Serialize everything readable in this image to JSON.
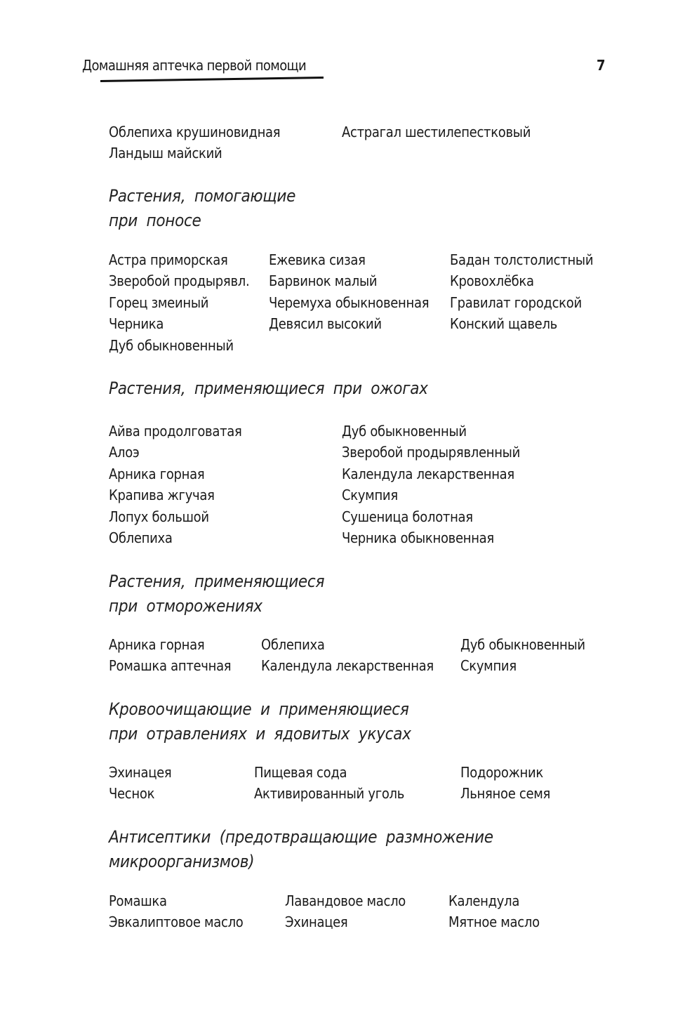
{
  "header": {
    "title": "Домашняя аптечка первой помощи",
    "page_number": "7"
  },
  "sections": [
    {
      "heading": [],
      "rows": [
        [
          "Облепиха крушиновидная",
          "Астрагал шестилепестковый"
        ],
        [
          "Ландыш майский"
        ]
      ]
    },
    {
      "heading": [
        "Растения, помогающие",
        "при поносе"
      ],
      "rows": [
        [
          "Астра приморская",
          "Ежевика сизая",
          "Бадан толстолистный"
        ],
        [
          "Зверобой продырявл.",
          "Барвинок малый",
          "Кровохлёбка"
        ],
        [
          "Горец змеиный",
          "Черемуха обыкновенная",
          "Гравилат городской"
        ],
        [
          "Черника",
          "Девясил высокий",
          "Конский щавель"
        ],
        [
          "Дуб обыкновенный"
        ]
      ]
    },
    {
      "heading": [
        "Растения, применяющиеся при ожогах"
      ],
      "rows": [
        [
          "Айва продолговатая",
          "Дуб обыкновенный"
        ],
        [
          "Алоэ",
          "Зверобой продырявленный"
        ],
        [
          "Арника горная",
          "Календула лекарственная"
        ],
        [
          "Крапива жгучая",
          "Скумпия"
        ],
        [
          "Лопух большой",
          "Сушеница болотная"
        ],
        [
          "Облепиха",
          "Черника обыкновенная"
        ]
      ]
    },
    {
      "heading": [
        "Растения, применяющиеся",
        "при отморожениях"
      ],
      "rows": [
        [
          "Арника горная",
          "Облепиха",
          "Дуб обыкновенный"
        ],
        [
          "Ромашка аптечная",
          "Календула лекарственная",
          "Скумпия"
        ]
      ]
    },
    {
      "heading": [
        "Кровоочищающие и применяющиеся",
        "при отравлениях и ядовитых укусах"
      ],
      "rows": [
        [
          "Эхинацея",
          "Пищевая сода",
          "Подорожник"
        ],
        [
          "Чеснок",
          "Активированный уголь",
          "Льняное семя"
        ]
      ]
    },
    {
      "heading": [
        "Антисептики (предотвращающие размножение",
        "микроорганизмов)"
      ],
      "rows": [
        [
          "Ромашка",
          "Лавандовое масло",
          "Календула"
        ],
        [
          "Эвкалиптовое масло",
          "Эхинацея",
          "Мятное масло"
        ]
      ]
    }
  ]
}
